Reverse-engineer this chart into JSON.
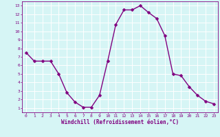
{
  "x": [
    0,
    1,
    2,
    3,
    4,
    5,
    6,
    7,
    8,
    9,
    10,
    11,
    12,
    13,
    14,
    15,
    16,
    17,
    18,
    19,
    20,
    21,
    22,
    23
  ],
  "y": [
    7.5,
    6.5,
    6.5,
    6.5,
    5.0,
    2.8,
    1.7,
    1.1,
    1.1,
    2.5,
    6.5,
    10.8,
    12.5,
    12.5,
    13.0,
    12.2,
    11.5,
    9.5,
    5.0,
    4.8,
    3.5,
    2.5,
    1.8,
    1.5
  ],
  "line_color": "#800080",
  "marker_color": "#800080",
  "bg_color": "#d6f5f5",
  "grid_color": "#ffffff",
  "xlabel": "Windchill (Refroidissement éolien,°C)",
  "xlabel_color": "#800080",
  "xlim": [
    -0.5,
    23.5
  ],
  "ylim": [
    0.5,
    13.5
  ],
  "yticks": [
    1,
    2,
    3,
    4,
    5,
    6,
    7,
    8,
    9,
    10,
    11,
    12,
    13
  ],
  "xticks": [
    0,
    1,
    2,
    3,
    4,
    5,
    6,
    7,
    8,
    9,
    10,
    11,
    12,
    13,
    14,
    15,
    16,
    17,
    18,
    19,
    20,
    21,
    22,
    23
  ],
  "tick_color": "#800080",
  "axis_color": "#800080",
  "marker_size": 2.5,
  "line_width": 1.0
}
